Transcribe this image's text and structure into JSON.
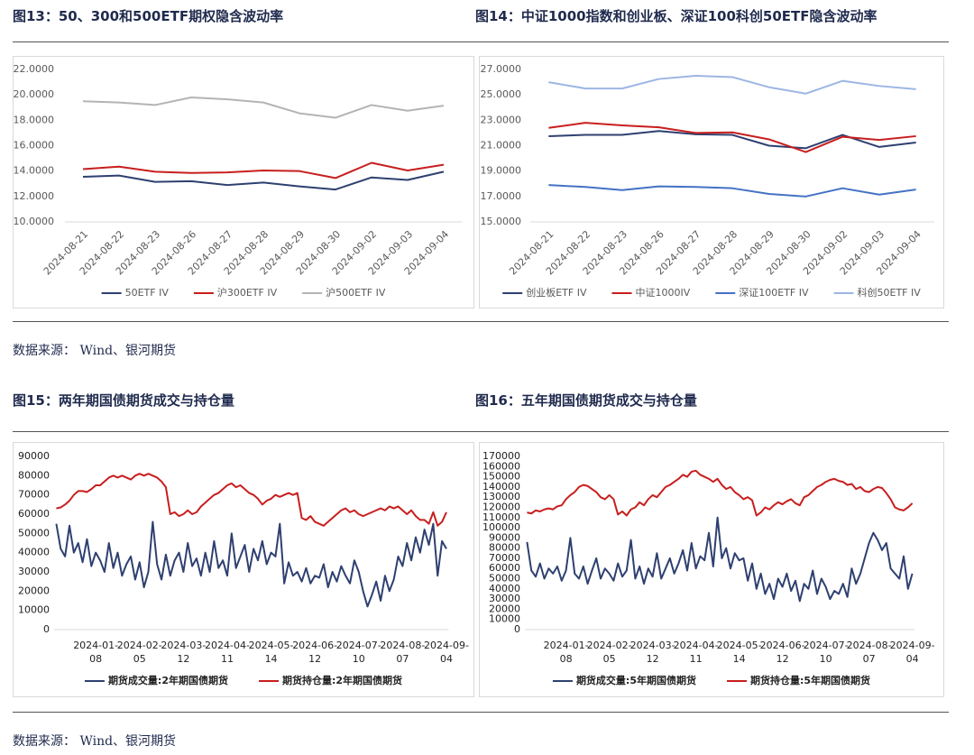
{
  "sources": [
    "数据来源： Wind、银河期货",
    "数据来源： Wind、银河期货"
  ],
  "chart_data": [
    {
      "type": "line",
      "title": "图13：50、300和500ETF期权隐含波动率",
      "categories": [
        "2024-08-21",
        "2024-08-22",
        "2024-08-23",
        "2024-08-26",
        "2024-08-27",
        "2024-08-28",
        "2024-08-29",
        "2024-08-30",
        "2024-09-02",
        "2024-09-03",
        "2024-09-04"
      ],
      "ylim": [
        10,
        22
      ],
      "yticks": [
        {
          "value": 10,
          "label": "10.0000"
        },
        {
          "value": 12,
          "label": "12.0000"
        },
        {
          "value": 14,
          "label": "14.0000"
        },
        {
          "value": 16,
          "label": "16.0000"
        },
        {
          "value": 18,
          "label": "18.0000"
        },
        {
          "value": 20,
          "label": "20.0000"
        },
        {
          "value": 22,
          "label": "22.0000"
        }
      ],
      "legend": "bottom",
      "series": [
        {
          "name": "50ETF IV",
          "color": "#2e4070",
          "values": [
            13.55,
            13.65,
            13.15,
            13.2,
            12.9,
            13.1,
            12.8,
            12.55,
            13.5,
            13.3,
            13.95
          ]
        },
        {
          "name": "沪300ETF IV",
          "color": "#c81e1e",
          "values": [
            14.15,
            14.35,
            13.95,
            13.85,
            13.9,
            14.05,
            14.0,
            13.45,
            14.65,
            14.05,
            14.5
          ]
        },
        {
          "name": "沪500ETF IV",
          "color": "#b4b4b4",
          "values": [
            19.5,
            19.4,
            19.2,
            19.8,
            19.65,
            19.4,
            18.55,
            18.2,
            19.2,
            18.75,
            19.15
          ]
        }
      ]
    },
    {
      "type": "line",
      "title": "图14：中证1000指数和创业板、深证100科创50ETF隐含波动率",
      "categories": [
        "2024-08-21",
        "2024-08-22",
        "2024-08-23",
        "2024-08-26",
        "2024-08-27",
        "2024-08-28",
        "2024-08-29",
        "2024-08-30",
        "2024-09-02",
        "2024-09-03",
        "2024-09-04"
      ],
      "ylim": [
        15,
        27
      ],
      "yticks": [
        {
          "value": 15,
          "label": "15.0000"
        },
        {
          "value": 17,
          "label": "17.0000"
        },
        {
          "value": 19,
          "label": "19.0000"
        },
        {
          "value": 21,
          "label": "21.0000"
        },
        {
          "value": 23,
          "label": "23.0000"
        },
        {
          "value": 25,
          "label": "25.0000"
        },
        {
          "value": 27,
          "label": "27.0000"
        }
      ],
      "legend": "bottom",
      "series": [
        {
          "name": "创业板ETF IV",
          "color": "#2e4070",
          "values": [
            21.75,
            21.85,
            21.85,
            22.15,
            21.9,
            21.85,
            21.0,
            20.8,
            21.85,
            20.9,
            21.25
          ]
        },
        {
          "name": "中证1000IV",
          "color": "#c81e1e",
          "values": [
            22.4,
            22.8,
            22.6,
            22.45,
            22.0,
            22.05,
            21.5,
            20.5,
            21.7,
            21.45,
            21.75
          ]
        },
        {
          "name": "深证100ETF IV",
          "color": "#4472c4",
          "values": [
            17.9,
            17.75,
            17.5,
            17.8,
            17.75,
            17.65,
            17.2,
            17.0,
            17.65,
            17.15,
            17.55
          ]
        },
        {
          "name": "科创50ETF IV",
          "color": "#9cb6e4",
          "values": [
            26.0,
            25.5,
            25.5,
            26.25,
            26.5,
            26.4,
            25.6,
            25.1,
            26.1,
            25.7,
            25.45
          ]
        }
      ]
    },
    {
      "type": "line",
      "title": "图15：两年期国债期货成交与持仓量",
      "categories": [
        null,
        null,
        null,
        null,
        null,
        null,
        null,
        null,
        null,
        "2024-01-08",
        null,
        null,
        null,
        null,
        null,
        null,
        null,
        null,
        null,
        "2024-02-05",
        null,
        null,
        null,
        null,
        null,
        null,
        null,
        null,
        null,
        "2024-03-12",
        null,
        null,
        null,
        null,
        null,
        null,
        null,
        null,
        null,
        "2024-04-11",
        null,
        null,
        null,
        null,
        null,
        null,
        null,
        null,
        null,
        "2024-05-14",
        null,
        null,
        null,
        null,
        null,
        null,
        null,
        null,
        null,
        "2024-06-12",
        null,
        null,
        null,
        null,
        null,
        null,
        null,
        null,
        null,
        "2024-07-10",
        null,
        null,
        null,
        null,
        null,
        null,
        null,
        null,
        null,
        "2024-08-07",
        null,
        null,
        null,
        null,
        null,
        null,
        null,
        null,
        null,
        "2024-09-04"
      ],
      "ylim": [
        0,
        90000
      ],
      "yticks": [
        0,
        10000,
        20000,
        30000,
        40000,
        50000,
        60000,
        70000,
        80000,
        90000
      ],
      "legend": "bottom",
      "series": [
        {
          "name": "期货成交量:2年期国债期货",
          "color": "#2e4070",
          "values": [
            55000,
            42000,
            38000,
            54000,
            40000,
            45000,
            35000,
            47000,
            33000,
            40000,
            36000,
            30000,
            45000,
            32000,
            40000,
            28000,
            34000,
            38000,
            26000,
            35000,
            22000,
            30000,
            56000,
            34000,
            26000,
            39000,
            28000,
            36000,
            40000,
            30000,
            45000,
            33000,
            37000,
            28000,
            40000,
            30000,
            46000,
            32000,
            36000,
            28000,
            50000,
            32000,
            38000,
            44000,
            30000,
            42000,
            36000,
            46000,
            34000,
            40000,
            38000,
            55000,
            24000,
            35000,
            28000,
            30000,
            25000,
            32000,
            24000,
            28000,
            27000,
            34000,
            22000,
            30000,
            25000,
            33000,
            28000,
            24000,
            36000,
            30000,
            20000,
            12000,
            18000,
            25000,
            15000,
            28000,
            20000,
            26000,
            38000,
            33000,
            45000,
            36000,
            48000,
            40000,
            52000,
            44000,
            55000,
            28000,
            46000,
            42000
          ]
        },
        {
          "name": "期货持仓量:2年期国债期货",
          "color": "#c81e1e",
          "values": [
            63000,
            63500,
            65000,
            67000,
            70000,
            72000,
            72000,
            71500,
            73000,
            75000,
            75000,
            77000,
            79000,
            80000,
            79000,
            80000,
            79000,
            78000,
            80000,
            81000,
            80000,
            81000,
            80000,
            79000,
            77000,
            74000,
            60000,
            61000,
            59000,
            60000,
            62000,
            60000,
            61000,
            64000,
            66000,
            68000,
            70000,
            71000,
            73000,
            75000,
            76000,
            74000,
            75000,
            73000,
            71000,
            70000,
            68000,
            65000,
            67000,
            68000,
            70000,
            69000,
            70000,
            71000,
            70000,
            71000,
            58000,
            57000,
            59000,
            56000,
            55000,
            54000,
            56000,
            58000,
            60000,
            62000,
            63000,
            61000,
            62000,
            60000,
            59000,
            60000,
            61000,
            62000,
            63000,
            62000,
            64000,
            63000,
            64000,
            62000,
            60000,
            62000,
            59000,
            57000,
            57000,
            55000,
            61000,
            54000,
            56000,
            61000
          ]
        }
      ]
    },
    {
      "type": "line",
      "title": "图16：五年期国债期货成交与持仓量",
      "categories": [
        null,
        null,
        null,
        null,
        null,
        null,
        null,
        null,
        null,
        "2024-01-08",
        null,
        null,
        null,
        null,
        null,
        null,
        null,
        null,
        null,
        "2024-02-05",
        null,
        null,
        null,
        null,
        null,
        null,
        null,
        null,
        null,
        "2024-03-12",
        null,
        null,
        null,
        null,
        null,
        null,
        null,
        null,
        null,
        "2024-04-11",
        null,
        null,
        null,
        null,
        null,
        null,
        null,
        null,
        null,
        "2024-05-14",
        null,
        null,
        null,
        null,
        null,
        null,
        null,
        null,
        null,
        "2024-06-12",
        null,
        null,
        null,
        null,
        null,
        null,
        null,
        null,
        null,
        "2024-07-10",
        null,
        null,
        null,
        null,
        null,
        null,
        null,
        null,
        null,
        "2024-08-07",
        null,
        null,
        null,
        null,
        null,
        null,
        null,
        null,
        null,
        "2024-09-04"
      ],
      "ylim": [
        0,
        170000
      ],
      "yticks": [
        0,
        10000,
        20000,
        30000,
        40000,
        50000,
        60000,
        70000,
        80000,
        90000,
        100000,
        110000,
        120000,
        130000,
        140000,
        150000,
        160000,
        170000
      ],
      "legend": "bottom",
      "series": [
        {
          "name": "期货成交量:5年期国债期货",
          "color": "#2e4070",
          "values": [
            86000,
            58000,
            52000,
            65000,
            50000,
            60000,
            55000,
            62000,
            48000,
            58000,
            90000,
            55000,
            50000,
            62000,
            45000,
            58000,
            70000,
            50000,
            60000,
            55000,
            48000,
            65000,
            52000,
            58000,
            88000,
            50000,
            62000,
            45000,
            60000,
            52000,
            75000,
            50000,
            60000,
            70000,
            55000,
            65000,
            78000,
            58000,
            85000,
            60000,
            72000,
            68000,
            95000,
            62000,
            110000,
            70000,
            80000,
            60000,
            75000,
            68000,
            70000,
            48000,
            65000,
            40000,
            55000,
            35000,
            45000,
            30000,
            50000,
            42000,
            55000,
            38000,
            48000,
            28000,
            45000,
            40000,
            58000,
            35000,
            50000,
            42000,
            30000,
            38000,
            35000,
            45000,
            32000,
            60000,
            45000,
            55000,
            70000,
            85000,
            95000,
            88000,
            78000,
            85000,
            60000,
            55000,
            50000,
            72000,
            40000,
            55000
          ]
        },
        {
          "name": "期货持仓量:5年期国债期货",
          "color": "#c81e1e",
          "values": [
            115000,
            114000,
            117000,
            116000,
            118000,
            119000,
            118000,
            121000,
            122000,
            128000,
            132000,
            135000,
            140000,
            142000,
            141000,
            138000,
            135000,
            130000,
            128000,
            132000,
            128000,
            113000,
            116000,
            112000,
            118000,
            120000,
            125000,
            122000,
            128000,
            132000,
            130000,
            135000,
            140000,
            142000,
            145000,
            148000,
            152000,
            150000,
            155000,
            156000,
            152000,
            150000,
            148000,
            145000,
            148000,
            142000,
            138000,
            140000,
            135000,
            132000,
            128000,
            130000,
            127000,
            112000,
            115000,
            120000,
            118000,
            122000,
            125000,
            123000,
            126000,
            128000,
            124000,
            122000,
            130000,
            132000,
            136000,
            140000,
            142000,
            145000,
            147000,
            148000,
            146000,
            145000,
            142000,
            143000,
            138000,
            140000,
            136000,
            135000,
            138000,
            140000,
            139000,
            134000,
            128000,
            120000,
            118000,
            117000,
            120000,
            124000
          ]
        }
      ]
    }
  ]
}
